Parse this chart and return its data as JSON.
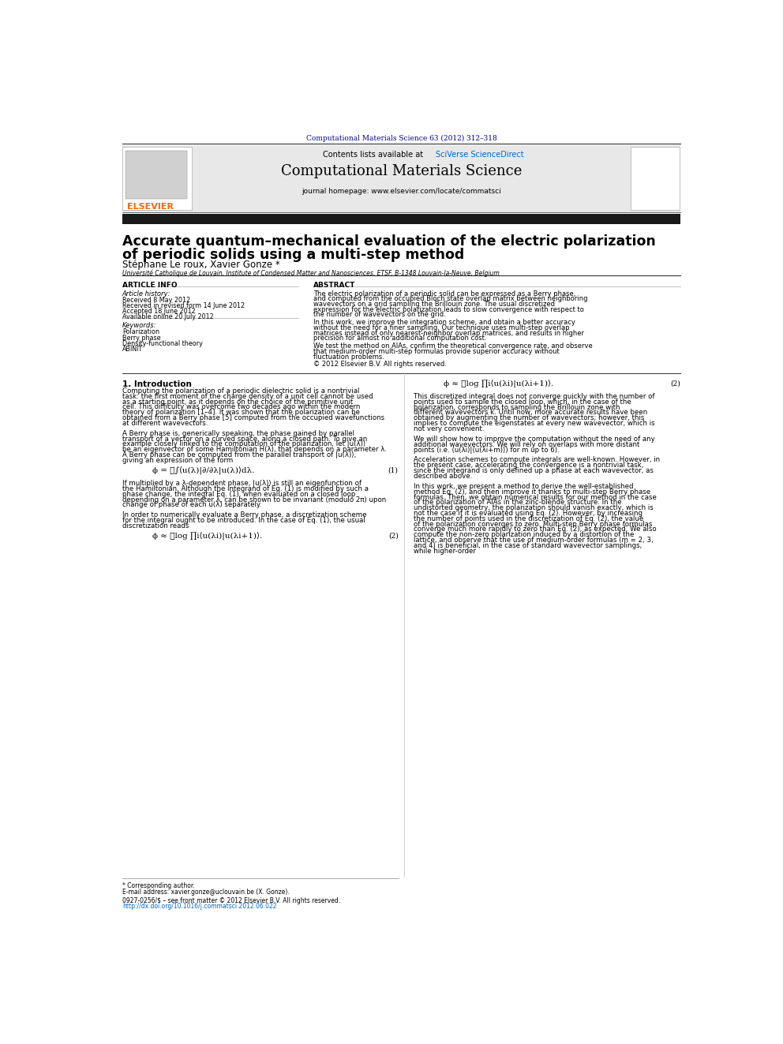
{
  "bg_color": "#ffffff",
  "page_width": 9.92,
  "page_height": 13.23,
  "journal_ref": "Computational Materials Science 63 (2012) 312–318",
  "journal_ref_color": "#00008B",
  "header_bg": "#e8e8e8",
  "contents_text": "Contents lists available at ",
  "sciverse_text": "SciVerse ScienceDirect",
  "sciverse_color": "#0066cc",
  "journal_title": "Computational Materials Science",
  "journal_homepage": "journal homepage: www.elsevier.com/locate/commatsci",
  "thick_bar_color": "#1a1a1a",
  "paper_title_line1": "Accurate quantum–mechanical evaluation of the electric polarization",
  "paper_title_line2": "of periodic solids using a multi-step method",
  "authors": "Stéphane Le roux, Xavier Gonze *",
  "affiliation": "Université Catholique de Louvain, Institute of Condensed Matter and Nanosciences, ETSF, B-1348 Louvain-la-Neuve, Belgium",
  "article_info_title": "ARTICLE INFO",
  "abstract_title": "ABSTRACT",
  "article_history_label": "Article history:",
  "received_text": "Received 8 May 2012",
  "revised_text": "Received in revised form 14 June 2012",
  "accepted_text": "Accepted 18 June 2012",
  "available_text": "Available online 20 July 2012",
  "keywords_label": "Keywords:",
  "keywords": [
    "Polarization",
    "Berry phase",
    "Density-functional theory",
    "ABINIT"
  ],
  "abstract_body": "The electric polarization of a periodic solid can be expressed as a Berry phase, and computed from the occupied Bloch state overlap matrix between neighboring wavevectors on a grid sampling the Brillouin zone. The usual discretized expression for the electric polarization leads to slow convergence with respect to the number of wavevectors on the grid.\n    In this work, we improve the integration scheme, and obtain a better accuracy without the need for a finer sampling. Our technique uses multi-step overlap matrices instead of only nearest-neighbor overlap matrices, and results in higher precision for almost no additional computation cost.\n    We test the method on AlAs, confirm the theoretical convergence rate, and observe that medium-order multi-step formulas provide superior accuracy without fluctuation problems.\n© 2012 Elsevier B.V. All rights reserved.",
  "intro_title": "1. Introduction",
  "intro_text1": "Computing the polarization of a periodic dielectric solid is a nontrivial task: the first moment of the charge density of a unit cell cannot be used as a starting point, as it depends on the choice of the primitive unit cell. This difficulty was overcome two decades ago within the modern theory of polarization [1–4]. It was shown that the polarization can be obtained from a Berry phase [5] computed from the occupied wavefunctions at different wavevectors.",
  "intro_text2": "A Berry phase is, generically speaking, the phase gained by parallel transport of a vector on a curved space, along a closed path. To give an example closely linked to the computation of the polarization, let |u(λ)⟩ be an eigenvector of some Hamiltonian H(λ), that depends on a parameter λ. A Berry phase can be computed from the parallel transport of |u(λ)⟩, giving an expression of the form",
  "eq1_text": "ϕ = ℑ∫⟨u(λ)|∂/∂λ|u(λ)⟩dλ.",
  "eq1_num": "(1)",
  "intro_text3": "If multiplied by a λ-dependent phase, |u(λ)⟩ is still an eigenfunction of the Hamiltonian. Although the integrand of Eq. (1) is modified by such a phase change, the integral Eq. (1), when evaluated on a closed loop depending on a parameter λ, can be shown to be invariant (modulo 2π) upon change of phase of each u(λ) separately.",
  "intro_text4": "In order to numerically evaluate a Berry phase, a discretization scheme for the integral ought to be introduced. In the case of Eq. (1), the usual discretization reads",
  "eq2_text": "ϕ ≈ ℑlog ∏i⟨u(λi)|u(λi+1)⟩.",
  "eq2_num": "(2)",
  "right_col_text1": "This discretized integral does not converge quickly with the number of points used to sample the closed loop, which, in the case of the polarization, corresponds to sampling the Brillouin zone with different wavevectors k. Until now, more accurate results have been obtained by augmenting the number of wavevectors; however, this implies to compute the eigenstates at every new wavevector, which is not very convenient.",
  "right_col_text2": "We will show how to improve the computation without the need of any additional wavevectors. We will rely on overlaps with more distant points (i.e. ⟨u(λi)|⟨u(λi+m)⟩) for m up to 6).",
  "right_col_text3": "Acceleration schemes to compute integrals are well-known. However, in the present case, accelerating the convergence is a nontrivial task, since the integrand is only defined up a phase at each wavevector, as described above.",
  "right_col_text4": "In this work, we present a method to derive the well-established method Eq. (2), and then improve it thanks to multi-step Berry phase formulas. Then, we obtain numerical results for our method in the case of the polarization of AlAs in the zinc-blende structure. In the undistorted geometry, the polarization should vanish exactly, which is not the case if it is evaluated using Eq. (2). However, by increasing the number of points used in the discretization of Eq. (2), the value of the polarization converges to zero. Multi-step Berry phase formulas converge much more rapidly to zero than Eq. (2), as expected. We also compute the non-zero polarization induced by a distortion of the lattice, and observe that the use of medium-order formulas (m = 2, 3, and 4) is beneficial, in the case of standard wavevector samplings, while higher-order",
  "footnote_text": "* Corresponding author.",
  "email_text": "E-mail address: xavier.gonze@uclouvain.be (X. Gonze).",
  "issn_text": "0927-0256/$ – see front matter © 2012 Elsevier B.V. All rights reserved.",
  "doi_text": "http://dx.doi.org/10.1016/j.commatsci.2012.06.022",
  "doi_color": "#0066cc",
  "elsevier_color": "#FF6600",
  "divider_color": "#333333"
}
